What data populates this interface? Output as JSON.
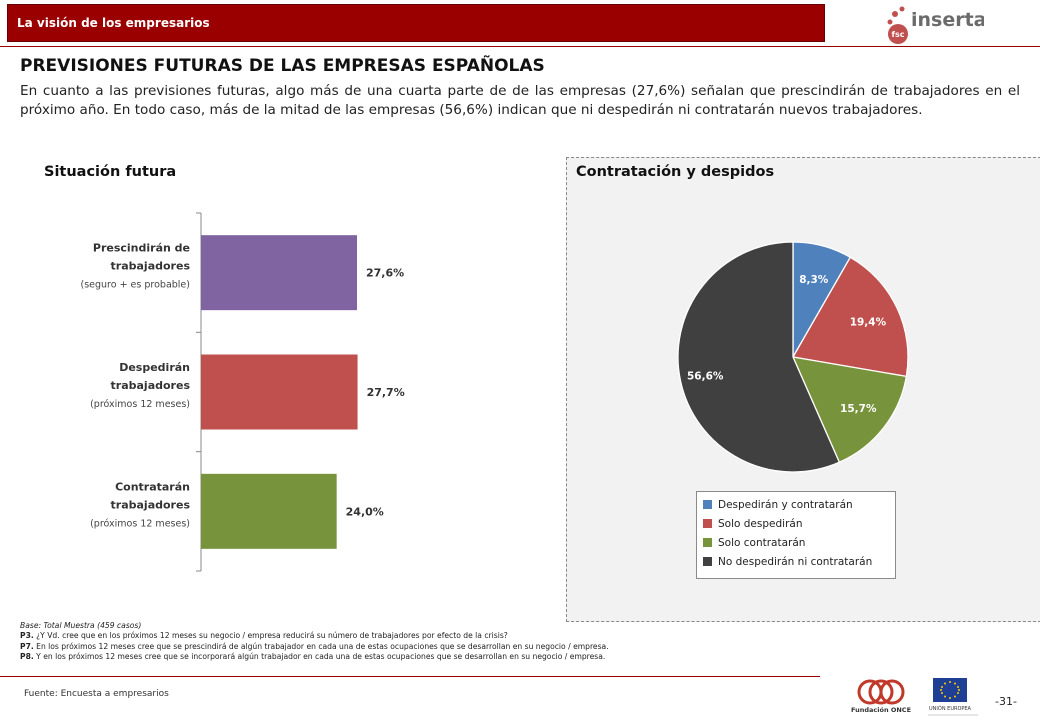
{
  "header": {
    "section": "La visión de los empresarios",
    "logo_text": "inserta",
    "logo_sub": "fsc"
  },
  "title": "PREVISIONES FUTURAS DE LAS EMPRESAS ESPAÑOLAS",
  "intro": "En cuanto a  las previsiones futuras, algo más de una cuarta parte de de las empresas (27,6%) señalan que prescindirán de trabajadores en el próximo año. En todo caso, más de la mitad de las empresas (56,6%) indican que ni despedirán ni contratarán nuevos trabajadores.",
  "bar_section_title": "Situación futura",
  "pie_section_title": "Contratación y despidos",
  "colors": {
    "brand_red": "#9b0000",
    "purple": "#8064a2",
    "red": "#c0504d",
    "green": "#77933c",
    "blue": "#4f81bd",
    "dark": "#404040"
  },
  "chart_data": [
    {
      "type": "bar",
      "orientation": "horizontal",
      "categories": [
        {
          "label_main": "Prescindirán de trabajadores",
          "label_lines": [
            "Prescindirán de",
            "trabajadores"
          ],
          "label_sub": "(seguro + es probable)"
        },
        {
          "label_main": "Despedirán trabajadores",
          "label_lines": [
            "Despedirán",
            "trabajadores"
          ],
          "label_sub": "(próximos 12 meses)"
        },
        {
          "label_main": "Contratarán trabajadores",
          "label_lines": [
            "Contratarán",
            "trabajadores"
          ],
          "label_sub": "(próximos 12 meses)"
        }
      ],
      "values": [
        27.6,
        27.7,
        24.0
      ],
      "value_labels": [
        "27,6%",
        "27,7%",
        "24,0%"
      ],
      "colors": [
        "#8064a2",
        "#c0504d",
        "#77933c"
      ],
      "xlim": [
        0,
        100
      ]
    },
    {
      "type": "pie",
      "labels": [
        "Despedirán y contratarán",
        "Solo despedirán",
        "Solo contratarán",
        "No despedirán ni contratarán"
      ],
      "values": [
        8.3,
        19.4,
        15.7,
        56.6
      ],
      "value_labels": [
        "8,3%",
        "19,4%",
        "15,7%",
        "56,6%"
      ],
      "colors": [
        "#4f81bd",
        "#c0504d",
        "#77933c",
        "#404040"
      ],
      "legend_position": "bottom"
    }
  ],
  "notes": {
    "base": "Base: Total Muestra (459 casos)",
    "items": [
      {
        "tag": "P3.",
        "text": " ¿Y Vd. cree que en los próximos 12 meses su negocio / empresa reducirá su número de trabajadores por efecto de la crisis?"
      },
      {
        "tag": "P7.",
        "text": " En los próximos 12 meses cree que se prescindirá de algún trabajador en cada una de estas ocupaciones que se desarrollan en su negocio / empresa."
      },
      {
        "tag": "P8.",
        "text": " Y en los próximos 12 meses cree que se incorporará algún trabajador en cada una de estas ocupaciones que se desarrollan en su negocio / empresa."
      }
    ]
  },
  "footer": {
    "source": "Fuente: Encuesta a empresarios",
    "page": "-31-",
    "logo_once_text": "Fundación ONCE",
    "logo_eu_text": "UNIÓN EUROPEA"
  }
}
